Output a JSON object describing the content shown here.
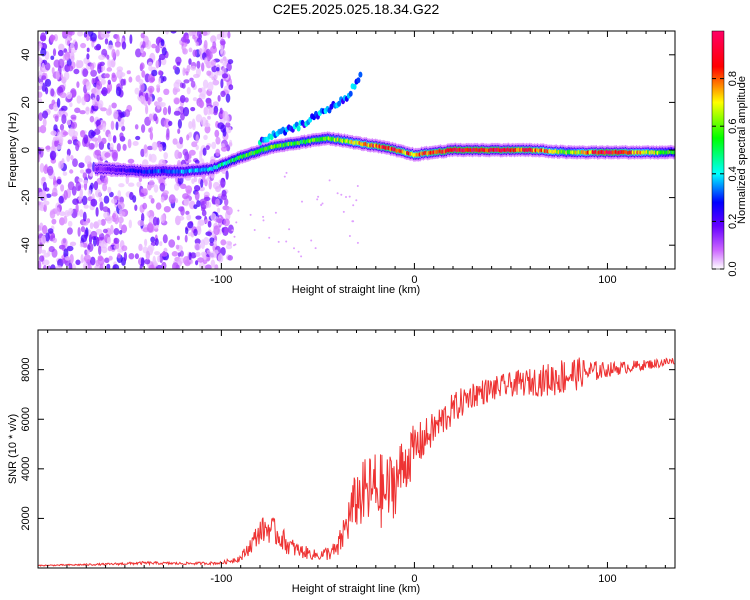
{
  "figure": {
    "title": "C2E5.2025.025.18.34.G22"
  },
  "chart_data": [
    {
      "type": "heatmap",
      "xlabel": "Height of straight line (km)",
      "ylabel": "Frequency (Hz)",
      "xlim": [
        -195,
        135
      ],
      "ylim": [
        -50,
        50
      ],
      "xticks": [
        -100,
        0,
        100
      ],
      "yticks": [
        -40,
        -20,
        0,
        20,
        40
      ],
      "grid": false,
      "colorbar": {
        "label": "Normalized spectral amplitude",
        "range": [
          0.0,
          1.0
        ],
        "ticks": [
          "0.0",
          "0.2",
          "0.4",
          "0.6",
          "0.8"
        ],
        "colors": [
          "#ffffff",
          "#cc66ff",
          "#6600ff",
          "#0000ff",
          "#00ffff",
          "#00ff00",
          "#ffff00",
          "#ff0000",
          "#ff0066"
        ]
      },
      "ridge": [
        {
          "x": -160,
          "y": -8,
          "amp": 0.15
        },
        {
          "x": -140,
          "y": -9,
          "amp": 0.3
        },
        {
          "x": -120,
          "y": -9,
          "amp": 0.35
        },
        {
          "x": -105,
          "y": -8,
          "amp": 0.4
        },
        {
          "x": -90,
          "y": -3,
          "amp": 0.55
        },
        {
          "x": -75,
          "y": 1,
          "amp": 0.6
        },
        {
          "x": -60,
          "y": 3,
          "amp": 0.55
        },
        {
          "x": -45,
          "y": 5,
          "amp": 0.6
        },
        {
          "x": -30,
          "y": 3,
          "amp": 0.7
        },
        {
          "x": -15,
          "y": 1,
          "amp": 0.9
        },
        {
          "x": 0,
          "y": -2,
          "amp": 0.75
        },
        {
          "x": 20,
          "y": 0,
          "amp": 0.95
        },
        {
          "x": 40,
          "y": 0,
          "amp": 0.9
        },
        {
          "x": 60,
          "y": 0,
          "amp": 0.85
        },
        {
          "x": 80,
          "y": -1,
          "amp": 0.6
        },
        {
          "x": 100,
          "y": -1,
          "amp": 0.95
        },
        {
          "x": 135,
          "y": -1,
          "amp": 0.5
        }
      ],
      "secondary_ridge": [
        {
          "x": -80,
          "y": 4
        },
        {
          "x": -60,
          "y": 10
        },
        {
          "x": -45,
          "y": 17
        },
        {
          "x": -35,
          "y": 22
        },
        {
          "x": -28,
          "y": 31
        }
      ]
    },
    {
      "type": "line",
      "xlabel": "Height of straight line (km)",
      "ylabel": "SNR (10 * v/v)",
      "xlim": [
        -195,
        135
      ],
      "ylim": [
        0,
        9600
      ],
      "xticks": [
        -100,
        0,
        100
      ],
      "yticks": [
        2000,
        4000,
        6000,
        8000
      ],
      "grid": false,
      "color": "#ee3333",
      "series": [
        {
          "x": [
            -195,
            -180,
            -160,
            -140,
            -120,
            -100,
            -90,
            -85,
            -80,
            -75,
            -70,
            -65,
            -60,
            -55,
            -50,
            -45,
            -40,
            -35,
            -30,
            -25,
            -20,
            -15,
            -10,
            -5,
            0,
            5,
            10,
            15,
            20,
            25,
            30,
            40,
            50,
            60,
            70,
            80,
            90,
            100,
            110,
            120,
            135
          ],
          "y": [
            100,
            120,
            150,
            200,
            180,
            200,
            400,
            900,
            1500,
            1600,
            1300,
            900,
            700,
            600,
            500,
            600,
            700,
            1800,
            2800,
            3000,
            3200,
            3000,
            3500,
            4200,
            4800,
            5200,
            5600,
            6000,
            6400,
            6700,
            7000,
            7200,
            7400,
            7500,
            7600,
            7800,
            7900,
            8000,
            8100,
            8200,
            8350
          ],
          "noise": [
            20,
            30,
            40,
            60,
            50,
            60,
            150,
            350,
            500,
            600,
            500,
            400,
            300,
            250,
            200,
            300,
            400,
            900,
            1200,
            1500,
            1600,
            1500,
            1400,
            1200,
            1000,
            800,
            700,
            700,
            650,
            600,
            550,
            500,
            500,
            550,
            700,
            800,
            500,
            300,
            250,
            200,
            180
          ]
        }
      ]
    }
  ]
}
